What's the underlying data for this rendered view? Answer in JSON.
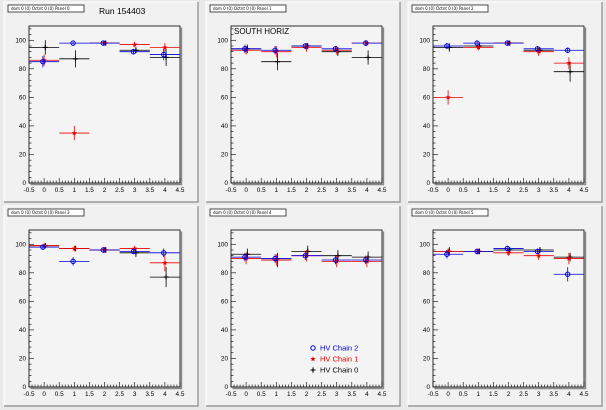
{
  "colors": {
    "chain2": "#0000dd",
    "chain1": "#ee0000",
    "chain0": "#000000"
  },
  "legend": [
    {
      "label": "HV Chain 2",
      "marker": "open-circle",
      "color": "#0000dd"
    },
    {
      "label": "HV Chain 1",
      "marker": "star",
      "color": "#ee0000"
    },
    {
      "label": "HV Chain 0",
      "marker": "plus",
      "color": "#000000"
    }
  ],
  "chart_data": [
    {
      "type": "scatter",
      "header": "dom 0 (0) Octnt 0 (0) Panel 0",
      "title": "Run 154403",
      "annotation": "",
      "xlim": [
        -0.5,
        4.5
      ],
      "ylim": [
        0,
        110
      ],
      "xticks": [
        "-0.5",
        "0",
        "0.5",
        "1",
        "1.5",
        "2",
        "2.5",
        "3",
        "3.5",
        "4",
        "4.5"
      ],
      "yticks": [
        "0",
        "20",
        "40",
        "60",
        "80",
        "100"
      ],
      "series": [
        {
          "name": "HV Chain 2",
          "x": [
            0,
            1,
            2,
            3,
            4
          ],
          "y": [
            85,
            98,
            98,
            92,
            90
          ],
          "yerr": [
            4,
            1,
            1.5,
            2,
            4
          ]
        },
        {
          "name": "HV Chain 1",
          "x": [
            0,
            1,
            2,
            3,
            4
          ],
          "y": [
            86,
            35,
            98,
            97,
            95
          ],
          "yerr": [
            4,
            5,
            1.5,
            2,
            3
          ]
        },
        {
          "name": "HV Chain 0",
          "x": [
            0,
            1,
            2,
            3,
            4
          ],
          "y": [
            95,
            87,
            98,
            93,
            88
          ],
          "yerr": [
            5,
            6,
            1.5,
            2,
            6
          ]
        }
      ]
    },
    {
      "type": "scatter",
      "header": "dom 0 (0) Octnt 0 (0) Panel 1",
      "title": "",
      "annotation": "SOUTH HORIZ",
      "xlim": [
        -0.5,
        4.5
      ],
      "ylim": [
        0,
        110
      ],
      "xticks": [
        "-0.5",
        "0",
        "0.5",
        "1",
        "1.5",
        "2",
        "2.5",
        "3",
        "3.5",
        "4",
        "4.5"
      ],
      "yticks": [
        "0",
        "20",
        "40",
        "60",
        "80",
        "100"
      ],
      "series": [
        {
          "name": "HV Chain 2",
          "x": [
            0,
            1,
            2,
            3,
            4
          ],
          "y": [
            94,
            93,
            96,
            94,
            98
          ],
          "yerr": [
            3,
            3,
            2,
            2,
            2
          ]
        },
        {
          "name": "HV Chain 1",
          "x": [
            0,
            1,
            2,
            3,
            4
          ],
          "y": [
            93,
            92,
            95,
            93,
            98
          ],
          "yerr": [
            3,
            4,
            3,
            3,
            2
          ]
        },
        {
          "name": "HV Chain 0",
          "x": [
            0,
            1,
            2,
            3,
            4
          ],
          "y": [
            94,
            85,
            96,
            92,
            88
          ],
          "yerr": [
            3,
            6,
            2,
            3,
            5
          ]
        }
      ]
    },
    {
      "type": "scatter",
      "header": "dom 0 (0) Octnt 0 (0) Panel 2",
      "title": "",
      "annotation": "",
      "xlim": [
        -0.5,
        4.5
      ],
      "ylim": [
        0,
        110
      ],
      "xticks": [
        "-0.5",
        "0",
        "0.5",
        "1",
        "1.5",
        "2",
        "2.5",
        "3",
        "3.5",
        "4",
        "4.5"
      ],
      "yticks": [
        "0",
        "20",
        "40",
        "60",
        "80",
        "100"
      ],
      "series": [
        {
          "name": "HV Chain 2",
          "x": [
            0,
            1,
            2,
            3,
            4
          ],
          "y": [
            96,
            98,
            98,
            94,
            93
          ],
          "yerr": [
            2,
            1.5,
            1.5,
            2,
            2
          ]
        },
        {
          "name": "HV Chain 1",
          "x": [
            0,
            1,
            2,
            3,
            4
          ],
          "y": [
            60,
            95,
            98,
            92,
            84
          ],
          "yerr": [
            5,
            2,
            1.5,
            3,
            4
          ]
        },
        {
          "name": "HV Chain 0",
          "x": [
            0,
            1,
            2,
            3,
            4
          ],
          "y": [
            95,
            96,
            98,
            93,
            78
          ],
          "yerr": [
            3,
            2,
            1.5,
            2,
            7
          ]
        }
      ]
    },
    {
      "type": "scatter",
      "header": "dom 0 (0) Octnt 0 (0) Panel 3",
      "title": "",
      "annotation": "",
      "xlim": [
        -0.5,
        4.5
      ],
      "ylim": [
        0,
        110
      ],
      "xticks": [
        "-0.5",
        "0",
        "0.5",
        "1",
        "1.5",
        "2",
        "2.5",
        "3",
        "3.5",
        "4",
        "4.5"
      ],
      "yticks": [
        "0",
        "20",
        "40",
        "60",
        "80",
        "100"
      ],
      "series": [
        {
          "name": "HV Chain 2",
          "x": [
            0,
            1,
            2,
            3,
            4
          ],
          "y": [
            98,
            88,
            96,
            95,
            94
          ],
          "yerr": [
            1.5,
            3,
            2,
            2,
            3
          ]
        },
        {
          "name": "HV Chain 1",
          "x": [
            0,
            1,
            2,
            3,
            4
          ],
          "y": [
            99,
            97,
            96,
            97,
            87
          ],
          "yerr": [
            1.5,
            2,
            2,
            2,
            6
          ]
        },
        {
          "name": "HV Chain 0",
          "x": [
            0,
            1,
            2,
            3,
            4
          ],
          "y": [
            99,
            97,
            96,
            94,
            77
          ],
          "yerr": [
            1.5,
            2,
            2,
            3,
            7
          ]
        }
      ]
    },
    {
      "type": "scatter",
      "header": "dom 0 (0) Octnt 0 (0) Panel 4",
      "title": "",
      "annotation": "",
      "xlim": [
        -0.5,
        4.5
      ],
      "ylim": [
        0,
        110
      ],
      "xticks": [
        "-0.5",
        "0",
        "0.5",
        "1",
        "1.5",
        "2",
        "2.5",
        "3",
        "3.5",
        "4",
        "4.5"
      ],
      "yticks": [
        "0",
        "20",
        "40",
        "60",
        "80",
        "100"
      ],
      "series": [
        {
          "name": "HV Chain 2",
          "x": [
            0,
            1,
            2,
            3,
            4
          ],
          "y": [
            91,
            90,
            92,
            89,
            89
          ],
          "yerr": [
            3,
            3,
            3,
            3,
            3
          ]
        },
        {
          "name": "HV Chain 1",
          "x": [
            0,
            1,
            2,
            3,
            4
          ],
          "y": [
            90,
            89,
            92,
            88,
            88
          ],
          "yerr": [
            4,
            4,
            4,
            4,
            4
          ]
        },
        {
          "name": "HV Chain 0",
          "x": [
            0,
            1,
            2,
            3,
            4
          ],
          "y": [
            93,
            89,
            95,
            92,
            91
          ],
          "yerr": [
            4,
            5,
            4,
            4,
            4
          ]
        }
      ]
    },
    {
      "type": "scatter",
      "header": "dom 0 (0) Octnt 0 (0) Panel 5",
      "title": "",
      "annotation": "",
      "xlim": [
        -0.5,
        4.5
      ],
      "ylim": [
        0,
        110
      ],
      "xticks": [
        "-0.5",
        "0",
        "0.5",
        "1",
        "1.5",
        "2",
        "2.5",
        "3",
        "3.5",
        "4",
        "4.5"
      ],
      "yticks": [
        "0",
        "20",
        "40",
        "60",
        "80",
        "100"
      ],
      "series": [
        {
          "name": "HV Chain 2",
          "x": [
            0,
            1,
            2,
            3,
            4
          ],
          "y": [
            93,
            95,
            97,
            95,
            79
          ],
          "yerr": [
            3,
            2,
            2,
            2,
            5
          ]
        },
        {
          "name": "HV Chain 1",
          "x": [
            0,
            1,
            2,
            3,
            4
          ],
          "y": [
            95,
            95,
            94,
            92,
            90
          ],
          "yerr": [
            2,
            2,
            2,
            3,
            4
          ]
        },
        {
          "name": "HV Chain 0",
          "x": [
            0,
            1,
            2,
            3,
            4
          ],
          "y": [
            95,
            95,
            96,
            96,
            91
          ],
          "yerr": [
            3,
            2,
            2,
            2,
            3
          ]
        }
      ]
    }
  ]
}
